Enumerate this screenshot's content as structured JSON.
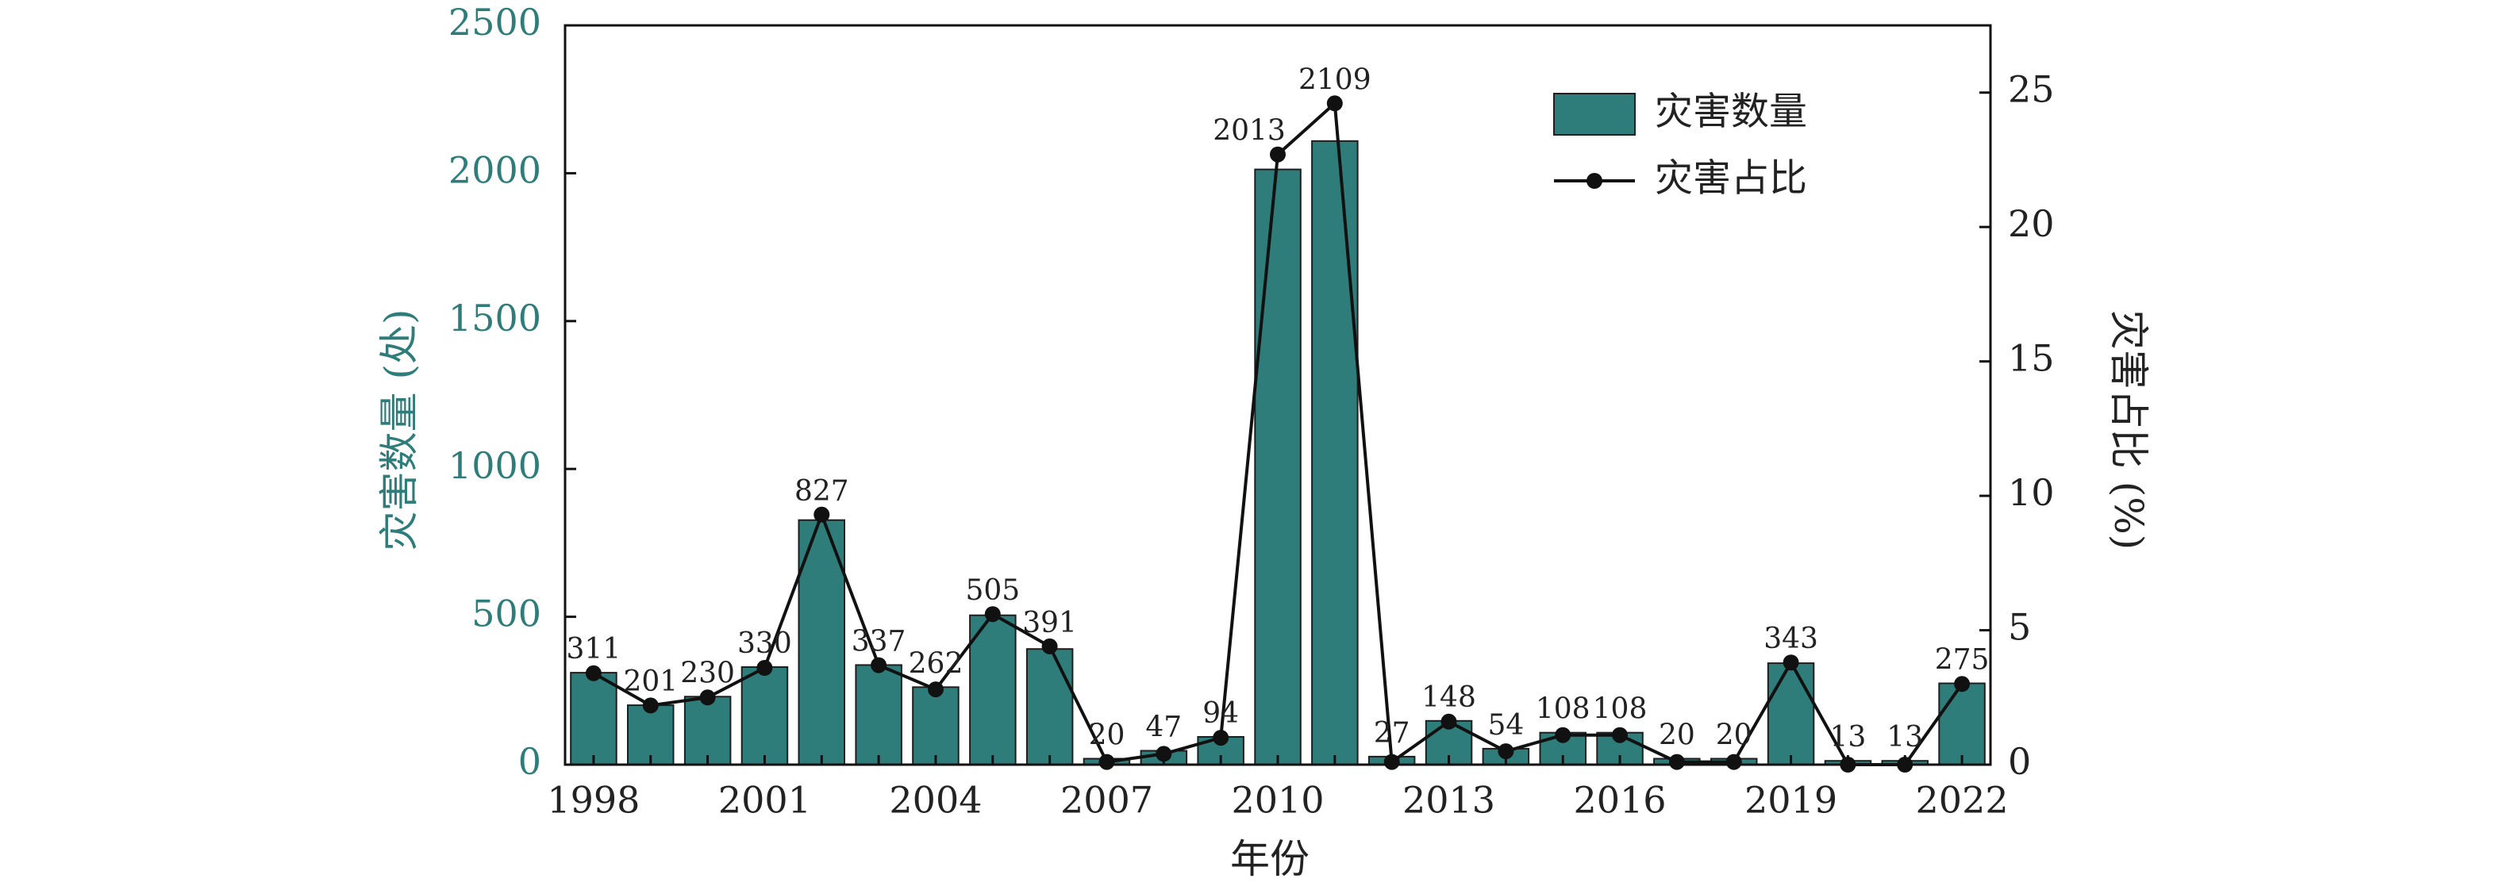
{
  "colors": {
    "bar_fill": "#2f7d7b",
    "bar_stroke": "#1e1e1e",
    "line": "#111111",
    "left_axis_text": "#2f7d7b",
    "text": "#222222"
  },
  "chart_data": {
    "type": "bar",
    "combo": "bar+line",
    "title": "",
    "xlabel": "年份",
    "ylabel": "灾害数量 (处)",
    "y2label": "灾害占比 (%)",
    "categories": [
      1998,
      1999,
      2000,
      2001,
      2002,
      2003,
      2004,
      2005,
      2006,
      2007,
      2008,
      2009,
      2010,
      2011,
      2012,
      2013,
      2014,
      2015,
      2016,
      2017,
      2018,
      2019,
      2020,
      2021,
      2022
    ],
    "x_tick_labels": [
      "1998",
      "2001",
      "2004",
      "2007",
      "2010",
      "2013",
      "2016",
      "2019",
      "2022"
    ],
    "ylim": [
      0,
      2500
    ],
    "y_ticks": [
      0,
      500,
      1000,
      1500,
      2000,
      2500
    ],
    "y2lim": [
      0,
      27.5
    ],
    "y2_ticks": [
      0,
      5,
      10,
      15,
      20,
      25
    ],
    "grid": false,
    "legend_position": "top-right",
    "series": [
      {
        "name": "灾害数量",
        "type": "bar",
        "axis": "left",
        "values": [
          311,
          201,
          230,
          330,
          827,
          337,
          262,
          505,
          391,
          20,
          47,
          94,
          2013,
          2109,
          27,
          148,
          54,
          108,
          108,
          20,
          20,
          343,
          13,
          13,
          275
        ],
        "labels": [
          "311",
          "201",
          "230",
          "330",
          "827",
          "337",
          "262",
          "505",
          "391",
          "20",
          "47",
          "94",
          "2013",
          "2109",
          "27",
          "148",
          "54",
          "108",
          "108",
          "20",
          "20",
          "343",
          "13",
          "13",
          "275"
        ]
      },
      {
        "name": "灾害占比",
        "type": "line",
        "axis": "right",
        "values": [
          3.4,
          2.2,
          2.5,
          3.6,
          9.3,
          3.7,
          2.8,
          5.6,
          4.4,
          0.1,
          0.4,
          1.0,
          22.7,
          24.6,
          0.1,
          1.6,
          0.5,
          1.1,
          1.1,
          0.1,
          0.1,
          3.8,
          0.0,
          0.0,
          3.0
        ]
      }
    ]
  }
}
